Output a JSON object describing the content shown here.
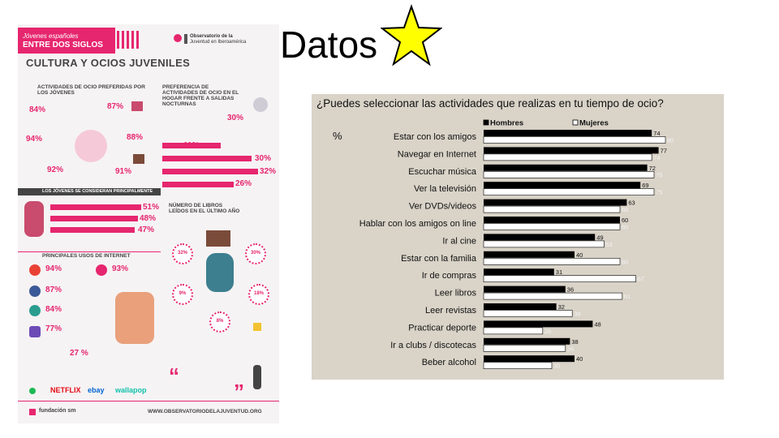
{
  "slide": {
    "title": "Datos"
  },
  "infographic": {
    "header_line1": "Jóvenes españoles",
    "header_line2": "ENTRE DOS SIGLOS",
    "header_line3": "CULTURA Y OCIOS JUVENILES",
    "logo_line1": "Observatorio de la",
    "logo_line2": "Juventud en Iberoamérica",
    "sec1_title": "ACTIVIDADES DE OCIO PREFERIDAS POR LOS JÓVENES",
    "sec1_pcts": [
      "84%",
      "87%",
      "94%",
      "88%",
      "92%",
      "91%"
    ],
    "sec2_title": "PREFERENCIA DE ACTIVIDADES DE OCIO EN EL HOGAR FRENTE A SALIDAS NOCTURNAS",
    "sec2_pcts": [
      "30%",
      "11%",
      "30%",
      "32%",
      "26%"
    ],
    "sec3_title": "LOS JÓVENES SE CONSIDERAN PRINCIPALMENTE",
    "sec3_pcts": [
      "51%",
      "48%",
      "47%"
    ],
    "sec4_title": "NÚMERO DE LIBROS LEÍDOS EN EL ÚLTIMO AÑO",
    "sec4_circles": [
      "32%",
      "30%",
      "9%",
      "18%",
      "8%"
    ],
    "sec5_title": "PRINCIPALES USOS DE INTERNET",
    "sec5_pcts": [
      "94%",
      "93%",
      "87%",
      "84%",
      "77%"
    ],
    "sec5_extra": "27 %",
    "brands": [
      "NETFLIX",
      "ebay",
      "wallapop"
    ],
    "footer_left": "fundación sm",
    "footer_right": "WWW.OBSERVATORIODELAJUVENTUD.ORG"
  },
  "chart_data": {
    "type": "bar",
    "title": "¿Puedes seleccionar las actividades que realizas en tu tiempo de ocio?",
    "ylabel": "%",
    "xlim": [
      0,
      100
    ],
    "legend_position": "top",
    "categories": [
      "Estar con los amigos",
      "Navegar en Internet",
      "Escuchar música",
      "Ver la televisión",
      "Ver DVDs/videos",
      "Hablar con los amigos on line",
      "Ir al cine",
      "Estar con la familia",
      "Ir de compras",
      "Leer libros",
      "Leer revistas",
      "Practicar deporte",
      "Ir a clubs / discotecas",
      "Beber alcohol"
    ],
    "series": [
      {
        "name": "Hombres",
        "color": "#000000",
        "values": [
          74,
          77,
          72,
          69,
          63,
          60,
          49,
          40,
          31,
          36,
          32,
          48,
          38,
          40
        ]
      },
      {
        "name": "Mujeres",
        "color": "#ffffff",
        "values": [
          80,
          74,
          75,
          75,
          60,
          60,
          53,
          60,
          67,
          61,
          39,
          26,
          36,
          30
        ]
      }
    ]
  }
}
